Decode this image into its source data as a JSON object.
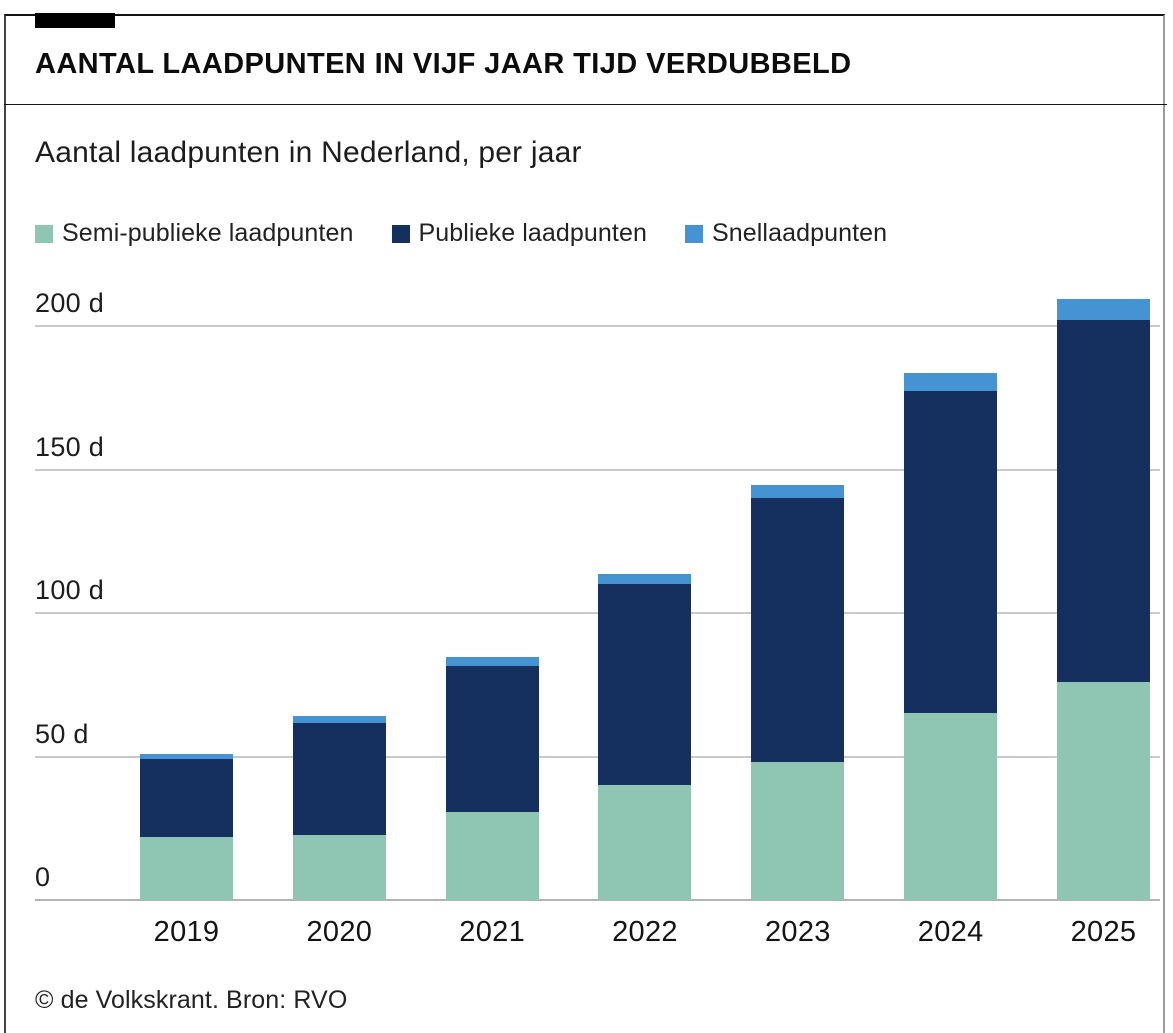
{
  "header": {
    "title": "AANTAL LAADPUNTEN IN VIJF JAAR TIJD VERDUBBELD"
  },
  "subtitle": "Aantal laadpunten in Nederland, per jaar",
  "footer": {
    "credit": "© de Volkskrant. Bron: RVO"
  },
  "colors": {
    "semi_publiek": "#8fc5b3",
    "publiek": "#15305e",
    "snellaad": "#4593d3",
    "gridline": "#c9c9c9",
    "zero_line": "#b3b3b3",
    "tab": "#000000"
  },
  "chart_data": {
    "type": "bar",
    "stacked": true,
    "title": "Aantal laadpunten in Nederland, per jaar",
    "xlabel": "",
    "ylabel": "",
    "unit_suffix": "d",
    "categories": [
      "2019",
      "2020",
      "2021",
      "2022",
      "2023",
      "2024",
      "2025"
    ],
    "series": [
      {
        "name": "Semi-publieke laadpunten",
        "color": "#8fc5b3",
        "values": [
          22,
          22.5,
          30.5,
          40,
          48,
          65,
          76
        ]
      },
      {
        "name": "Publieke laadpunten",
        "color": "#15305e",
        "values": [
          27,
          39,
          51,
          70,
          92,
          112.5,
          126
        ]
      },
      {
        "name": "Snellaadpunten",
        "color": "#4593d3",
        "values": [
          2,
          2.5,
          3,
          3.5,
          4.5,
          6,
          7.5
        ]
      }
    ],
    "totals": [
      51,
      64,
      84.5,
      113.5,
      144.5,
      183.5,
      209.5
    ],
    "y_ticks": [
      {
        "value": 0,
        "label": "0"
      },
      {
        "value": 50,
        "label": "50 d"
      },
      {
        "value": 100,
        "label": "100 d"
      },
      {
        "value": 150,
        "label": "150 d"
      },
      {
        "value": 200,
        "label": "200 d"
      }
    ],
    "ylim": [
      0,
      210
    ],
    "grid": true,
    "legend_position": "top"
  }
}
